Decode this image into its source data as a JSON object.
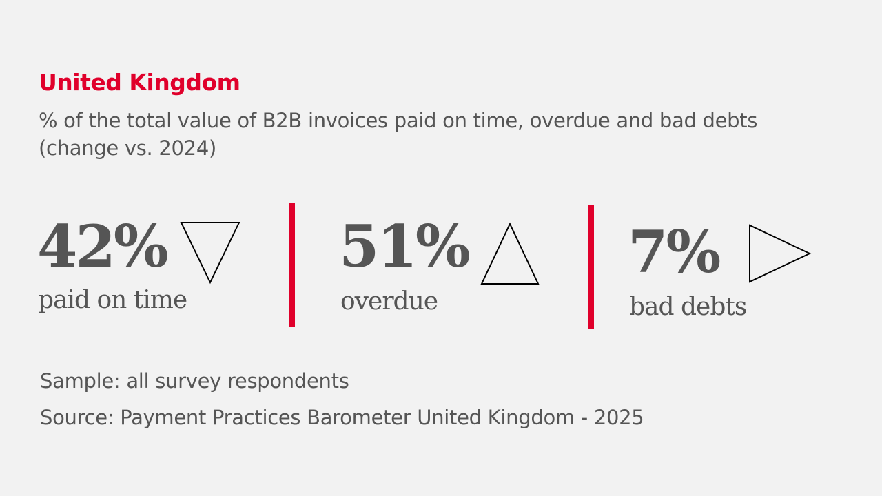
{
  "title": "United Kingdom",
  "subtitle_line1": "% of the total value of B2B invoices paid on time, overdue and bad debts",
  "subtitle_line2": "(change vs. 2024)",
  "colors": {
    "accent": "#e0002b",
    "text": "#555555",
    "background": "#f2f2f2"
  },
  "chart_data": {
    "type": "table",
    "title": "United Kingdom",
    "items": [
      {
        "value": "42%",
        "label": "paid on time",
        "change": "down",
        "icon": "triangle-down-icon"
      },
      {
        "value": "51%",
        "label": "overdue",
        "change": "up",
        "icon": "triangle-up-icon"
      },
      {
        "value": "7%",
        "label": "bad debts",
        "change": "unchanged",
        "icon": "triangle-right-icon"
      }
    ]
  },
  "footer": {
    "sample": "Sample: all survey respondents",
    "source": "Source: Payment Practices Barometer United Kingdom - 2025"
  }
}
